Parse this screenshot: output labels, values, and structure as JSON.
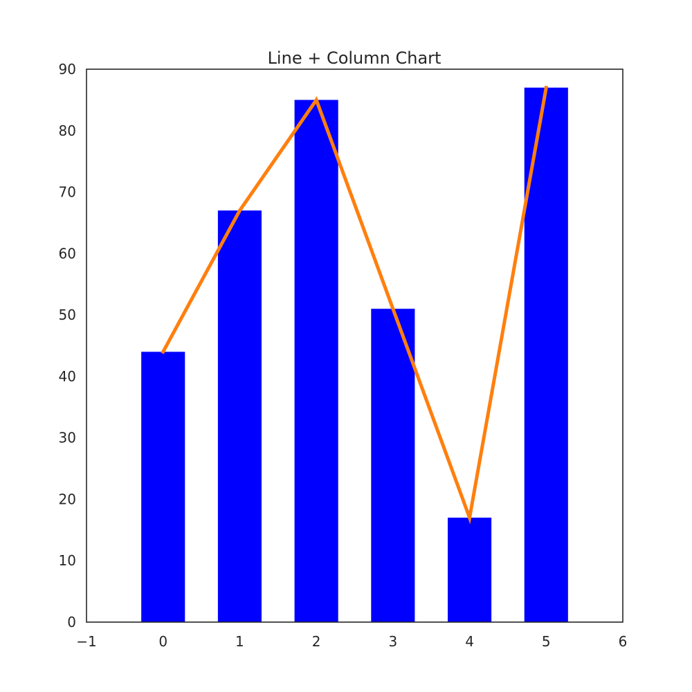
{
  "chart_data": {
    "type": "bar",
    "title": "Line + Column Chart",
    "xlabel": "",
    "ylabel": "",
    "x": [
      0,
      1,
      2,
      3,
      4,
      5
    ],
    "series": [
      {
        "kind": "bar",
        "values": [
          44,
          67,
          85,
          51,
          17,
          87
        ],
        "color": "#0000ff"
      },
      {
        "kind": "line",
        "values": [
          44,
          67,
          85,
          51,
          17,
          87
        ],
        "color": "#ff7f0e"
      }
    ],
    "xlim": [
      -1,
      6
    ],
    "ylim": [
      0,
      90
    ],
    "xticks": [
      -1,
      0,
      1,
      2,
      3,
      4,
      5,
      6
    ],
    "xtick_labels": [
      "−1",
      "0",
      "1",
      "2",
      "3",
      "4",
      "5",
      "6"
    ],
    "yticks": [
      0,
      10,
      20,
      30,
      40,
      50,
      60,
      70,
      80,
      90
    ],
    "ytick_labels": [
      "0",
      "10",
      "20",
      "30",
      "40",
      "50",
      "60",
      "70",
      "80",
      "90"
    ],
    "bar_width": 0.57,
    "grid": false,
    "legend": "none",
    "axes_color": "#262626"
  }
}
